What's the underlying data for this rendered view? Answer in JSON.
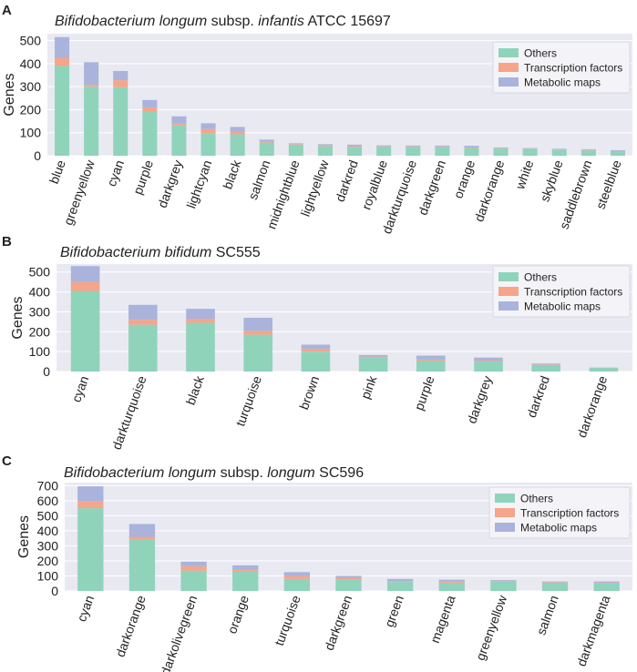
{
  "legend_labels": [
    "Others",
    "Transcription factors",
    "Metabolic maps"
  ],
  "colors": {
    "others": "#8fd3bb",
    "tf": "#f4a58a",
    "maps": "#a9b3dc",
    "plot_bg": "#e9e9f2",
    "grid": "#ffffff",
    "text": "#222222"
  },
  "chart_data": [
    {
      "type": "bar",
      "panel_letter": "A",
      "title_parts": [
        {
          "text": "Bifidobacterium longum",
          "italic": true
        },
        {
          "text": " subsp. ",
          "italic": false
        },
        {
          "text": "infantis",
          "italic": true
        },
        {
          "text": " ATCC 15697",
          "italic": false
        }
      ],
      "ylabel": "Genes",
      "ylim": [
        0,
        530
      ],
      "yticks": [
        0,
        100,
        200,
        300,
        400,
        500
      ],
      "legend_position": "top-right",
      "stacked": true,
      "categories": [
        "blue",
        "greenyellow",
        "cyan",
        "purple",
        "darkgrey",
        "lightcyan",
        "black",
        "salmon",
        "midnightblue",
        "lightyellow",
        "darkred",
        "royalblue",
        "darkturquoise",
        "darkgreen",
        "orange",
        "darkorange",
        "white",
        "skyblue",
        "saddlebrown",
        "steelblue"
      ],
      "series": [
        {
          "name": "Others",
          "values": [
            390,
            300,
            298,
            190,
            133,
            98,
            93,
            57,
            48,
            42,
            38,
            40,
            39,
            37,
            33,
            31,
            30,
            25,
            23,
            18
          ]
        },
        {
          "name": "Transcription factors",
          "values": [
            35,
            8,
            30,
            20,
            8,
            18,
            10,
            5,
            2,
            4,
            4,
            2,
            2,
            3,
            3,
            2,
            1,
            2,
            2,
            2
          ]
        },
        {
          "name": "Metabolic maps",
          "values": [
            90,
            98,
            40,
            32,
            30,
            25,
            22,
            8,
            4,
            4,
            6,
            3,
            3,
            4,
            7,
            3,
            2,
            3,
            3,
            4
          ]
        }
      ]
    },
    {
      "type": "bar",
      "panel_letter": "B",
      "title_parts": [
        {
          "text": "Bifidobacterium bifidum",
          "italic": true
        },
        {
          "text": " SC555",
          "italic": false
        }
      ],
      "ylabel": "Genes",
      "ylim": [
        0,
        540
      ],
      "yticks": [
        0,
        100,
        200,
        300,
        400,
        500
      ],
      "legend_position": "top-right",
      "stacked": true,
      "categories": [
        "cyan",
        "darkturquoise",
        "black",
        "turquoise",
        "brown",
        "pink",
        "purple",
        "darkgrey",
        "darkred",
        "darkorange"
      ],
      "series": [
        {
          "name": "Others",
          "values": [
            405,
            235,
            245,
            185,
            100,
            70,
            55,
            50,
            33,
            18
          ]
        },
        {
          "name": "Transcription factors",
          "values": [
            45,
            25,
            20,
            20,
            15,
            5,
            5,
            5,
            2,
            1
          ]
        },
        {
          "name": "Metabolic maps",
          "values": [
            80,
            75,
            50,
            65,
            20,
            8,
            20,
            15,
            5,
            1
          ]
        }
      ]
    },
    {
      "type": "bar",
      "panel_letter": "C",
      "title_parts": [
        {
          "text": "Bifidobacterium longum",
          "italic": true
        },
        {
          "text": " subsp. ",
          "italic": false
        },
        {
          "text": "longum",
          "italic": true
        },
        {
          "text": " SC596",
          "italic": false
        }
      ],
      "ylabel": "Genes",
      "ylim": [
        0,
        720
      ],
      "yticks": [
        0,
        100,
        200,
        300,
        400,
        500,
        600,
        700
      ],
      "legend_position": "top-right",
      "stacked": true,
      "categories": [
        "cyan",
        "darkorange",
        "darkolivegreen",
        "orange",
        "turquoise",
        "darkgreen",
        "green",
        "magenta",
        "greenyellow",
        "salmon",
        "darkmagenta"
      ],
      "series": [
        {
          "name": "Others",
          "values": [
            550,
            340,
            135,
            130,
            80,
            75,
            60,
            55,
            65,
            55,
            50
          ]
        },
        {
          "name": "Transcription factors",
          "values": [
            45,
            20,
            30,
            15,
            20,
            10,
            5,
            8,
            3,
            3,
            5
          ]
        },
        {
          "name": "Metabolic maps",
          "values": [
            100,
            85,
            30,
            25,
            25,
            15,
            15,
            12,
            5,
            5,
            8
          ]
        }
      ]
    }
  ]
}
